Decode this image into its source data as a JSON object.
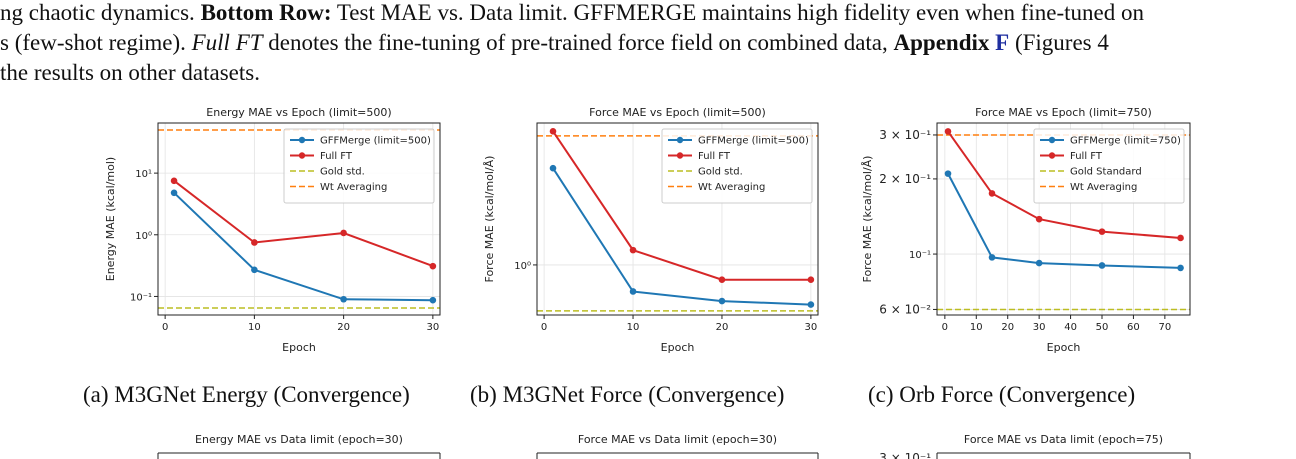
{
  "paragraph": {
    "line1": {
      "a": "ng chaotic dynamics. ",
      "b": "Bottom Row:",
      "c": " Test MAE vs. Data limit. G",
      "d": "FF",
      "e": "M",
      "f": "ERGE",
      "g": " maintains high fidelity even when fine-tuned on"
    },
    "line2": {
      "a": "s (few-shot regime). ",
      "b": "Full FT",
      "c": " denotes the fine-tuning of pre-trained force field on combined data, ",
      "d": "Appendix",
      "e": " F",
      "f": " (Figures 4"
    },
    "line3": "the results on other datasets."
  },
  "captions": {
    "a": "(a) M3GNet Energy (Convergence)",
    "b": "(b) M3GNet Force (Convergence)",
    "c": "(c) Orb Force (Convergence)"
  },
  "chart_data": [
    {
      "type": "line",
      "title": "Energy MAE vs Epoch (limit=500)",
      "xlabel": "Epoch",
      "ylabel": "Energy MAE (kcal/mol)",
      "yscale": "log",
      "xlim": [
        -0.8,
        30.8
      ],
      "ylim": [
        0.05,
        65
      ],
      "xticks": [
        0,
        10,
        20,
        30
      ],
      "yticks": [
        {
          "v": 10,
          "label": "10¹"
        },
        {
          "v": 1,
          "label": "10⁰"
        },
        {
          "v": 0.1,
          "label": "10⁻¹"
        }
      ],
      "grid": true,
      "legend": "top-right",
      "series": [
        {
          "name": "GFFMerge (limit=500)",
          "color": "#1f77b4",
          "x": [
            1,
            10,
            20,
            30
          ],
          "y": [
            4.8,
            0.27,
            0.09,
            0.087
          ]
        },
        {
          "name": "Full FT",
          "color": "#d62728",
          "x": [
            1,
            10,
            20,
            30
          ],
          "y": [
            7.5,
            0.75,
            1.07,
            0.31
          ]
        }
      ],
      "hlines": [
        {
          "name": "Gold std.",
          "color": "#bcbd22",
          "y": 0.065
        },
        {
          "name": "Wt Averaging",
          "color": "#ff7f0e",
          "y": 50
        }
      ]
    },
    {
      "type": "line",
      "title": "Force MAE vs Epoch (limit=500)",
      "xlabel": "Epoch",
      "ylabel": "Force MAE (kcal/mol/Å)",
      "yscale": "log",
      "xlim": [
        -0.8,
        30.8
      ],
      "ylim": [
        0.47,
        8.5
      ],
      "xticks": [
        0,
        10,
        20,
        30
      ],
      "yticks": [
        {
          "v": 1,
          "label": "10⁰"
        }
      ],
      "grid": true,
      "legend": "top-right",
      "series": [
        {
          "name": "GFFMerge (limit=500)",
          "color": "#1f77b4",
          "x": [
            1,
            10,
            20,
            30
          ],
          "y": [
            4.3,
            0.67,
            0.58,
            0.55
          ]
        },
        {
          "name": "Full FT",
          "color": "#d62728",
          "x": [
            1,
            10,
            20,
            30
          ],
          "y": [
            7.5,
            1.25,
            0.8,
            0.8
          ]
        }
      ],
      "hlines": [
        {
          "name": "Gold std.",
          "color": "#bcbd22",
          "y": 0.5
        },
        {
          "name": "Wt Averaging",
          "color": "#ff7f0e",
          "y": 7.0
        }
      ]
    },
    {
      "type": "line",
      "title": "Force MAE vs Epoch (limit=750)",
      "xlabel": "Epoch",
      "ylabel": "Force MAE (kcal/mol/Å)",
      "yscale": "log",
      "xlim": [
        -2.5,
        78
      ],
      "ylim": [
        0.057,
        0.335
      ],
      "xticks": [
        0,
        10,
        20,
        30,
        40,
        50,
        60,
        70
      ],
      "yticks": [
        {
          "v": 0.3,
          "label": "3 × 10⁻¹"
        },
        {
          "v": 0.2,
          "label": "2 × 10⁻¹"
        },
        {
          "v": 0.1,
          "label": "10⁻¹"
        },
        {
          "v": 0.06,
          "label": "6 × 10⁻²"
        }
      ],
      "grid": true,
      "legend": "top-right",
      "series": [
        {
          "name": "GFFMerge (limit=750)",
          "color": "#1f77b4",
          "x": [
            1,
            15,
            30,
            50,
            75
          ],
          "y": [
            0.21,
            0.097,
            0.092,
            0.09,
            0.088
          ]
        },
        {
          "name": "Full FT",
          "color": "#d62728",
          "x": [
            1,
            15,
            30,
            50,
            75
          ],
          "y": [
            0.31,
            0.175,
            0.138,
            0.123,
            0.116
          ]
        }
      ],
      "hlines": [
        {
          "name": "Gold Standard",
          "color": "#bcbd22",
          "y": 0.06
        },
        {
          "name": "Wt Averaging",
          "color": "#ff7f0e",
          "y": 0.3
        }
      ]
    },
    {
      "type": "line",
      "title": "Energy MAE vs Data limit (epoch=30)",
      "partial": true
    },
    {
      "type": "line",
      "title": "Force MAE vs Data limit (epoch=30)",
      "partial": true
    },
    {
      "type": "line",
      "title": "Force MAE vs Data limit (epoch=75)",
      "partial": true,
      "ytick_visible": "3 × 10⁻¹"
    }
  ]
}
